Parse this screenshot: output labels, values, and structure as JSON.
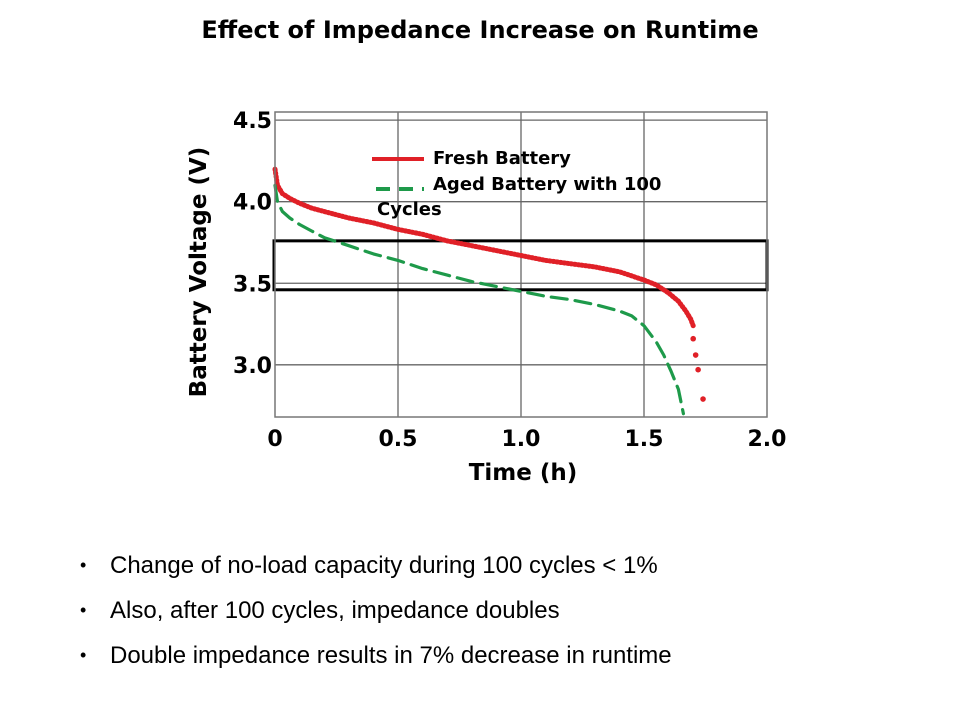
{
  "slide": {
    "title": "Effect of Impedance Increase on Runtime",
    "bullets": [
      "Change of no-load capacity during 100 cycles < 1%",
      "Also, after 100 cycles, impedance doubles",
      "Double impedance results in 7% decrease in runtime"
    ],
    "bullet_glyph": "•"
  },
  "chart_data": {
    "type": "line",
    "title": "Effect of Impedance Increase on Runtime",
    "xlabel": "Time (h)",
    "ylabel": "Battery Voltage (V)",
    "xlim": [
      0,
      2.0
    ],
    "ylim": [
      2.68,
      4.55
    ],
    "x_ticks": [
      0,
      0.5,
      1.0,
      1.5,
      2.0
    ],
    "x_tick_labels": [
      "0",
      "0.5",
      "1.0",
      "1.5",
      "2.0"
    ],
    "y_ticks": [
      3.0,
      3.5,
      4.0,
      4.5
    ],
    "y_tick_labels": [
      "3.0",
      "3.5",
      "4.0",
      "4.5"
    ],
    "grid": true,
    "legend_position": "top-center",
    "highlight_band": [
      3.46,
      3.76
    ],
    "series": [
      {
        "name": "Fresh Battery",
        "color": "#e02027",
        "style": "dotted-solid",
        "x": [
          0,
          0.01,
          0.03,
          0.06,
          0.1,
          0.15,
          0.2,
          0.3,
          0.4,
          0.5,
          0.6,
          0.7,
          0.8,
          0.9,
          1.0,
          1.1,
          1.2,
          1.3,
          1.4,
          1.5,
          1.55,
          1.6,
          1.64,
          1.67,
          1.69,
          1.7
        ],
        "y": [
          4.2,
          4.1,
          4.05,
          4.02,
          3.99,
          3.96,
          3.94,
          3.9,
          3.87,
          3.83,
          3.8,
          3.76,
          3.73,
          3.7,
          3.67,
          3.64,
          3.62,
          3.6,
          3.57,
          3.52,
          3.49,
          3.44,
          3.39,
          3.33,
          3.28,
          3.24
        ],
        "tail_x": [
          1.7,
          1.71,
          1.72,
          1.74
        ],
        "tail_y": [
          3.16,
          3.06,
          2.97,
          2.79
        ]
      },
      {
        "name": "Aged Battery with 100 Cycles",
        "color": "#1e9a4a",
        "style": "dashed",
        "x": [
          0,
          0.01,
          0.03,
          0.06,
          0.1,
          0.15,
          0.2,
          0.3,
          0.4,
          0.5,
          0.6,
          0.7,
          0.8,
          0.9,
          1.0,
          1.1,
          1.2,
          1.3,
          1.4,
          1.45,
          1.5,
          1.55,
          1.58,
          1.61,
          1.64,
          1.66
        ],
        "y": [
          4.1,
          4.0,
          3.94,
          3.9,
          3.86,
          3.82,
          3.78,
          3.73,
          3.68,
          3.64,
          3.59,
          3.55,
          3.51,
          3.48,
          3.45,
          3.42,
          3.4,
          3.37,
          3.33,
          3.3,
          3.24,
          3.14,
          3.06,
          2.96,
          2.85,
          2.7
        ]
      }
    ]
  }
}
